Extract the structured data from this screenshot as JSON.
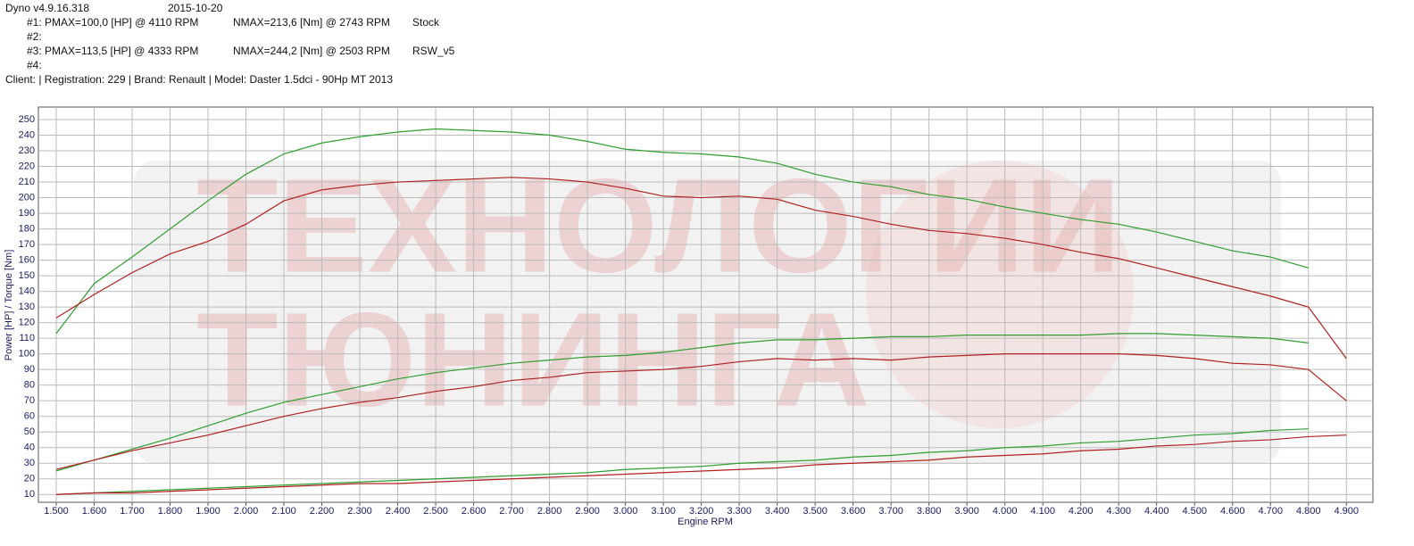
{
  "header": {
    "app": "Dyno v4.9.16.318",
    "date": "2015-10-20",
    "runs": [
      [
        "#1: PMAX=100,0 [HP] @ 4110 RPM",
        "NMAX=213,6 [Nm] @ 2743 RPM",
        "Stock"
      ],
      [
        "#2:"
      ],
      [
        "#3: PMAX=113,5 [HP] @ 4333 RPM",
        "NMAX=244,2 [Nm] @ 2503 RPM",
        "RSW_v5"
      ],
      [
        "#4:"
      ]
    ],
    "client": "Client:   | Registration: 229 | Brand: Renault | Model: Daster 1.5dci - 90Hp MT 2013"
  },
  "chart_data": {
    "type": "line",
    "watermark": [
      "ТЕХНОЛОГИИ",
      "ТЮНИНГА"
    ],
    "x_label": "Engine RPM",
    "y_label": "Power [HP] / Torque [Nm]",
    "x": [
      1500,
      1600,
      1700,
      1800,
      1900,
      2000,
      2100,
      2200,
      2300,
      2400,
      2500,
      2600,
      2700,
      2800,
      2900,
      3000,
      3100,
      3200,
      3300,
      3400,
      3500,
      3600,
      3700,
      3800,
      3900,
      4000,
      4100,
      4200,
      4300,
      4400,
      4500,
      4600,
      4700,
      4800,
      4900
    ],
    "series": [
      {
        "color": "#2e9e2e",
        "values": [
          113,
          145,
          162,
          180,
          198,
          215,
          228,
          235,
          239,
          242,
          244,
          243,
          242,
          240,
          236,
          231,
          229,
          228,
          226,
          222,
          215,
          210,
          207,
          202,
          199,
          194,
          190,
          186,
          183,
          178,
          172,
          166,
          162,
          155,
          null
        ]
      },
      {
        "color": "#b02020",
        "values": [
          123,
          138,
          152,
          164,
          172,
          183,
          198,
          205,
          208,
          210,
          211,
          212,
          213,
          212,
          210,
          206,
          201,
          200,
          201,
          199,
          192,
          188,
          183,
          179,
          177,
          174,
          170,
          165,
          161,
          155,
          149,
          143,
          137,
          130,
          97
        ]
      },
      {
        "color": "#2e9e2e",
        "values": [
          25,
          32,
          39,
          46,
          54,
          62,
          69,
          74,
          79,
          84,
          88,
          91,
          94,
          96,
          98,
          99,
          101,
          104,
          107,
          109,
          109,
          110,
          111,
          111,
          112,
          112,
          112,
          112,
          113,
          113,
          112,
          111,
          110,
          107,
          null
        ]
      },
      {
        "color": "#b02020",
        "values": [
          26,
          32,
          38,
          43,
          48,
          54,
          60,
          65,
          69,
          72,
          76,
          79,
          83,
          85,
          88,
          89,
          90,
          92,
          95,
          97,
          96,
          97,
          96,
          98,
          99,
          100,
          100,
          100,
          100,
          99,
          97,
          94,
          93,
          90,
          70
        ]
      },
      {
        "color": "#2e9e2e",
        "values": [
          10,
          11,
          12,
          13,
          14,
          15,
          16,
          17,
          18,
          19,
          20,
          21,
          22,
          23,
          24,
          26,
          27,
          28,
          30,
          31,
          32,
          34,
          35,
          37,
          38,
          40,
          41,
          43,
          44,
          46,
          48,
          49,
          51,
          52,
          null
        ]
      },
      {
        "color": "#b02020",
        "values": [
          10,
          11,
          11,
          12,
          13,
          14,
          15,
          16,
          17,
          17,
          18,
          19,
          20,
          21,
          22,
          23,
          24,
          25,
          26,
          27,
          29,
          30,
          31,
          32,
          34,
          35,
          36,
          38,
          39,
          41,
          42,
          44,
          45,
          47,
          48
        ]
      }
    ],
    "xlim": [
      1453,
      4970
    ],
    "ylim": [
      5,
      258
    ],
    "xticks": [
      {
        "value": 1500,
        "label": "1.500"
      },
      {
        "value": 1600,
        "label": "1.600"
      },
      {
        "value": 1700,
        "label": "1.700"
      },
      {
        "value": 1800,
        "label": "1.800"
      },
      {
        "value": 1900,
        "label": "1.900"
      },
      {
        "value": 2000,
        "label": "2.000"
      },
      {
        "value": 2100,
        "label": "2.100"
      },
      {
        "value": 2200,
        "label": "2.200"
      },
      {
        "value": 2300,
        "label": "2.300"
      },
      {
        "value": 2400,
        "label": "2.400"
      },
      {
        "value": 2500,
        "label": "2.500"
      },
      {
        "value": 2600,
        "label": "2.600"
      },
      {
        "value": 2700,
        "label": "2.700"
      },
      {
        "value": 2800,
        "label": "2.800"
      },
      {
        "value": 2900,
        "label": "2.900"
      },
      {
        "value": 3000,
        "label": "3.000"
      },
      {
        "value": 3100,
        "label": "3.100"
      },
      {
        "value": 3200,
        "label": "3.200"
      },
      {
        "value": 3300,
        "label": "3.300"
      },
      {
        "value": 3400,
        "label": "3.400"
      },
      {
        "value": 3500,
        "label": "3.500"
      },
      {
        "value": 3600,
        "label": "3.600"
      },
      {
        "value": 3700,
        "label": "3.700"
      },
      {
        "value": 3800,
        "label": "3.800"
      },
      {
        "value": 3900,
        "label": "3.900"
      },
      {
        "value": 4000,
        "label": "4.000"
      },
      {
        "value": 4100,
        "label": "4.100"
      },
      {
        "value": 4200,
        "label": "4.200"
      },
      {
        "value": 4300,
        "label": "4.300"
      },
      {
        "value": 4400,
        "label": "4.400"
      },
      {
        "value": 4500,
        "label": "4.500"
      },
      {
        "value": 4600,
        "label": "4.600"
      },
      {
        "value": 4700,
        "label": "4.700"
      },
      {
        "value": 4800,
        "label": "4.800"
      },
      {
        "value": 4900,
        "label": "4.900"
      }
    ],
    "yticks": [
      10,
      20,
      30,
      40,
      50,
      60,
      70,
      80,
      90,
      100,
      110,
      120,
      130,
      140,
      150,
      160,
      170,
      180,
      190,
      200,
      210,
      220,
      230,
      240,
      250
    ],
    "grid": true
  }
}
